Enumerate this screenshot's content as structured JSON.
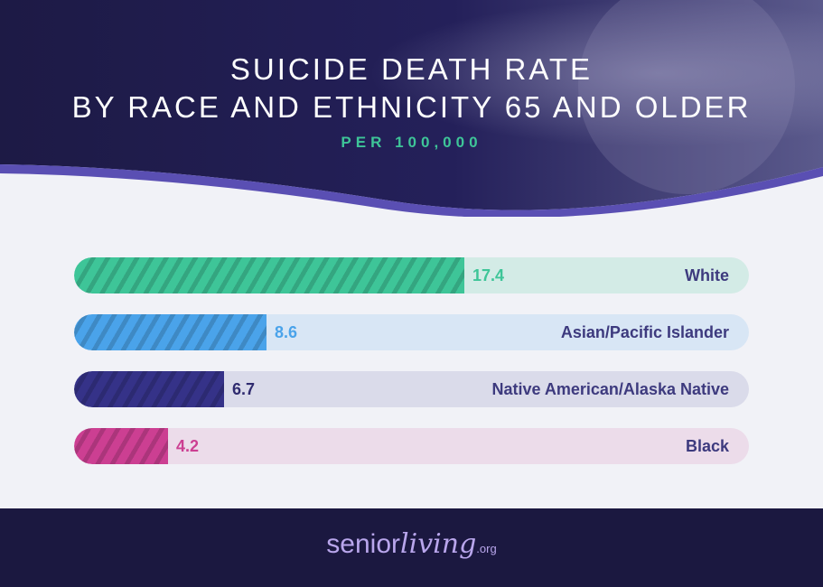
{
  "title": {
    "line1": "SUICIDE DEATH RATE",
    "line2": "BY RACE AND ETHNICITY 65 AND OLDER"
  },
  "subtitle": "PER 100,000",
  "chart_data": {
    "type": "bar",
    "orientation": "horizontal",
    "title": "SUICIDE DEATH RATE BY RACE AND ETHNICITY 65 AND OLDER",
    "subtitle": "PER 100,000",
    "categories": [
      "White",
      "Asian/Pacific Islander",
      "Native American/Alaska Native",
      "Black"
    ],
    "values": [
      17.4,
      8.6,
      6.7,
      4.2
    ],
    "value_labels": [
      "17.4",
      "8.6",
      "6.7",
      "4.2"
    ],
    "fill_colors": [
      "#3ec598",
      "#4aa3ea",
      "#353288",
      "#cc3f92"
    ],
    "track_colors": [
      "#d3ebe6",
      "#d8e6f5",
      "#dadbea",
      "#ecdcea"
    ],
    "value_colors": [
      "#3ec598",
      "#4aa3ea",
      "#2f2b6f",
      "#cc3f92"
    ],
    "xlim": [
      0,
      30.1
    ]
  },
  "footer": {
    "brand_prefix": "senior",
    "brand_script": "living",
    "brand_suffix": ".org"
  }
}
